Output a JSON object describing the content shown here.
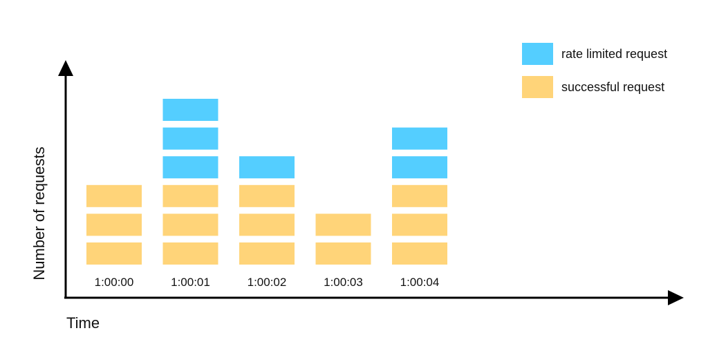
{
  "chart_data": {
    "type": "bar",
    "stacked": true,
    "title": "",
    "xlabel": "Time",
    "ylabel": "Number of requests",
    "categories": [
      "1:00:00",
      "1:00:01",
      "1:00:02",
      "1:00:03",
      "1:00:04"
    ],
    "series": [
      {
        "name": "successful request",
        "values": [
          3,
          3,
          3,
          2,
          3
        ],
        "color": "#FFD479"
      },
      {
        "name": "rate limited request",
        "values": [
          0,
          3,
          1,
          0,
          2
        ],
        "color": "#54CEFF"
      }
    ],
    "legend_order": [
      "rate limited request",
      "successful request"
    ],
    "legend_position": "top-right",
    "grid": false,
    "ylim": [
      0,
      7
    ]
  }
}
